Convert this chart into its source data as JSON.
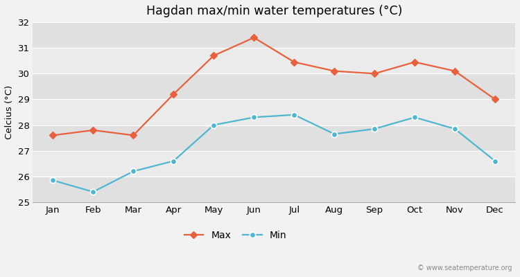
{
  "title": "Hagdan max/min water temperatures (°C)",
  "ylabel": "Celcius (°C)",
  "months": [
    "Jan",
    "Feb",
    "Mar",
    "Apr",
    "May",
    "Jun",
    "Jul",
    "Aug",
    "Sep",
    "Oct",
    "Nov",
    "Dec"
  ],
  "max_temps": [
    27.6,
    27.8,
    27.6,
    29.2,
    30.7,
    31.4,
    30.45,
    30.1,
    30.0,
    30.45,
    30.1,
    29.0
  ],
  "min_temps": [
    25.85,
    25.4,
    26.2,
    26.6,
    28.0,
    28.3,
    28.4,
    27.65,
    27.85,
    28.3,
    27.85,
    26.6
  ],
  "max_color": "#e8603c",
  "min_color": "#4db6d0",
  "bg_color": "#f2f2f2",
  "plot_bg_light": "#ebebeb",
  "plot_bg_dark": "#e0e0e0",
  "ylim": [
    25,
    32
  ],
  "yticks": [
    25,
    26,
    27,
    28,
    29,
    30,
    31,
    32
  ],
  "watermark": "© www.seatemperature.org",
  "legend_max": "Max",
  "legend_min": "Min"
}
